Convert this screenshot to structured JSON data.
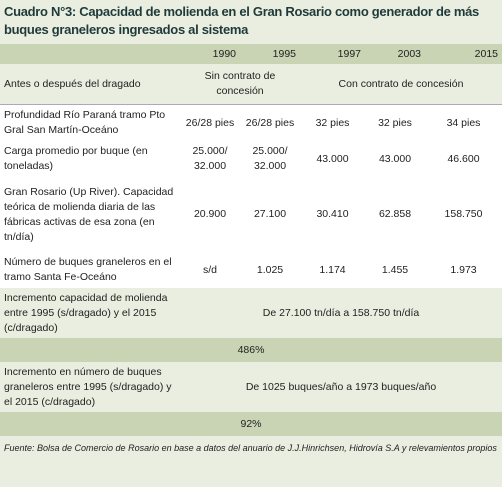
{
  "title": "Cuadro N°3: Capacidad de molienda en el Gran Rosario como generador de más buques graneleros ingresados al sistema",
  "table": {
    "years": [
      "1990",
      "1995",
      "1997",
      "2003",
      "2015"
    ],
    "group_label": "Antes o después del dragado",
    "groups": [
      "Sin contrato de concesión",
      "Con contrato de concesión"
    ],
    "rows": [
      {
        "label": "Profundidad Río Paraná tramo Pto Gral San Martín-Oceáno",
        "values": [
          "26/28 pies",
          "26/28 pies",
          "32 pies",
          "32 pies",
          "34 pies"
        ]
      },
      {
        "label": "Carga promedio por buque (en toneladas)",
        "values": [
          "25.000/ 32.000",
          "25.000/ 32.000",
          "43.000",
          "43.000",
          "46.600"
        ]
      },
      {
        "label": "Gran Rosario (Up River). Capacidad teórica de molienda diaria de las fábricas activas de esa zona (en tn/día)",
        "values": [
          "20.900",
          "27.100",
          "30.410",
          "62.858",
          "158.750"
        ]
      },
      {
        "label": "Número de buques graneleros en el tramo Santa Fe-Oceáno",
        "values": [
          "s/d",
          "1.025",
          "1.174",
          "1.455",
          "1.973"
        ]
      }
    ]
  },
  "increments": [
    {
      "label": "Incremento capacidad de molienda entre 1995 (s/dragado) y el 2015 (c/dragado)",
      "text": "De 27.100 tn/día a 158.750 tn/día",
      "result": "486%"
    },
    {
      "label": "Incremento en número de buques graneleros entre 1995 (s/dragado) y el 2015 (c/dragado)",
      "text": "De 1025 buques/año a 1973 buques/año",
      "result": "92%"
    }
  ],
  "source": "Fuente: Bolsa de Comercio de Rosario en base a datos del anuario de J.J.Hinrichsen, Hidrovía S.A y relevamientos propios"
}
